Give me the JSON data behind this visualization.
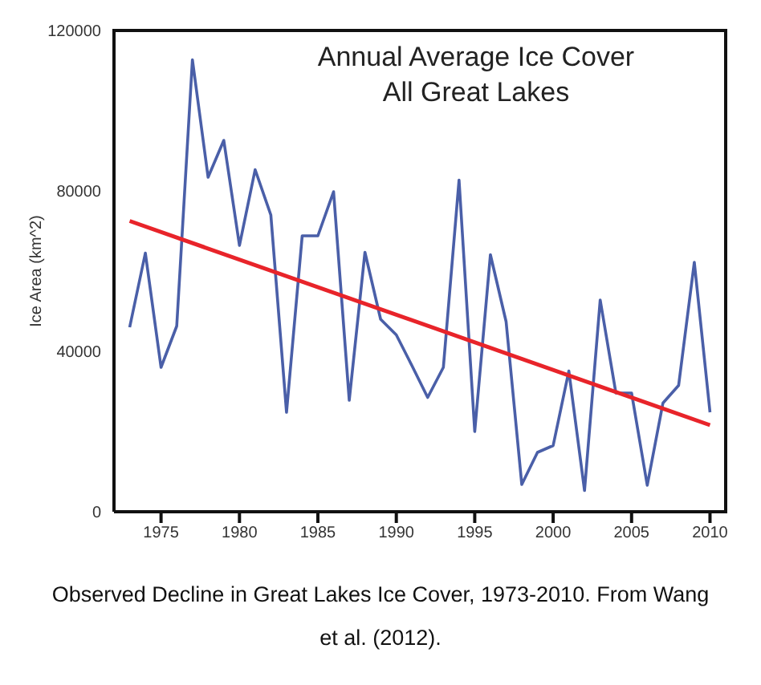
{
  "chart_data": {
    "type": "line",
    "title": "Annual Average Ice Cover\nAll Great Lakes",
    "ylabel": "Ice Area (km^2)",
    "annotations": [
      "Observed Decline in Great Lakes Ice Cover, 1973-2010. From Wang et al. (2012)."
    ],
    "x": [
      1973,
      1974,
      1975,
      1976,
      1977,
      1978,
      1979,
      1980,
      1981,
      1982,
      1983,
      1984,
      1985,
      1986,
      1987,
      1988,
      1989,
      1990,
      1991,
      1992,
      1993,
      1994,
      1995,
      1996,
      1997,
      1998,
      1999,
      2000,
      2001,
      2002,
      2003,
      2004,
      2005,
      2006,
      2007,
      2008,
      2009,
      2010
    ],
    "series": [
      {
        "color": "#4a5fa8",
        "values": [
          46000,
          64500,
          36000,
          46300,
          112700,
          83400,
          92600,
          66400,
          85300,
          74000,
          24800,
          68800,
          68800,
          79800,
          27800,
          64700,
          48000,
          44100,
          36400,
          28500,
          36000,
          82700,
          20000,
          64100,
          47400,
          6800,
          14800,
          16500,
          35100,
          5300,
          52800,
          29600,
          29600,
          6600,
          27100,
          31500,
          62200,
          24800
        ]
      },
      {
        "type": "line",
        "color": "#e8242a",
        "x": [
          1973,
          2010
        ],
        "values": [
          72500,
          21600
        ]
      }
    ],
    "xlim": [
      1972,
      2011
    ],
    "xticks": [
      1975,
      1980,
      1985,
      1990,
      1995,
      2000,
      2005,
      2010
    ],
    "ylim": [
      0,
      120000
    ],
    "yticks": [
      0,
      40000,
      80000,
      120000
    ],
    "grid": false,
    "legend": false,
    "marker": "none"
  }
}
